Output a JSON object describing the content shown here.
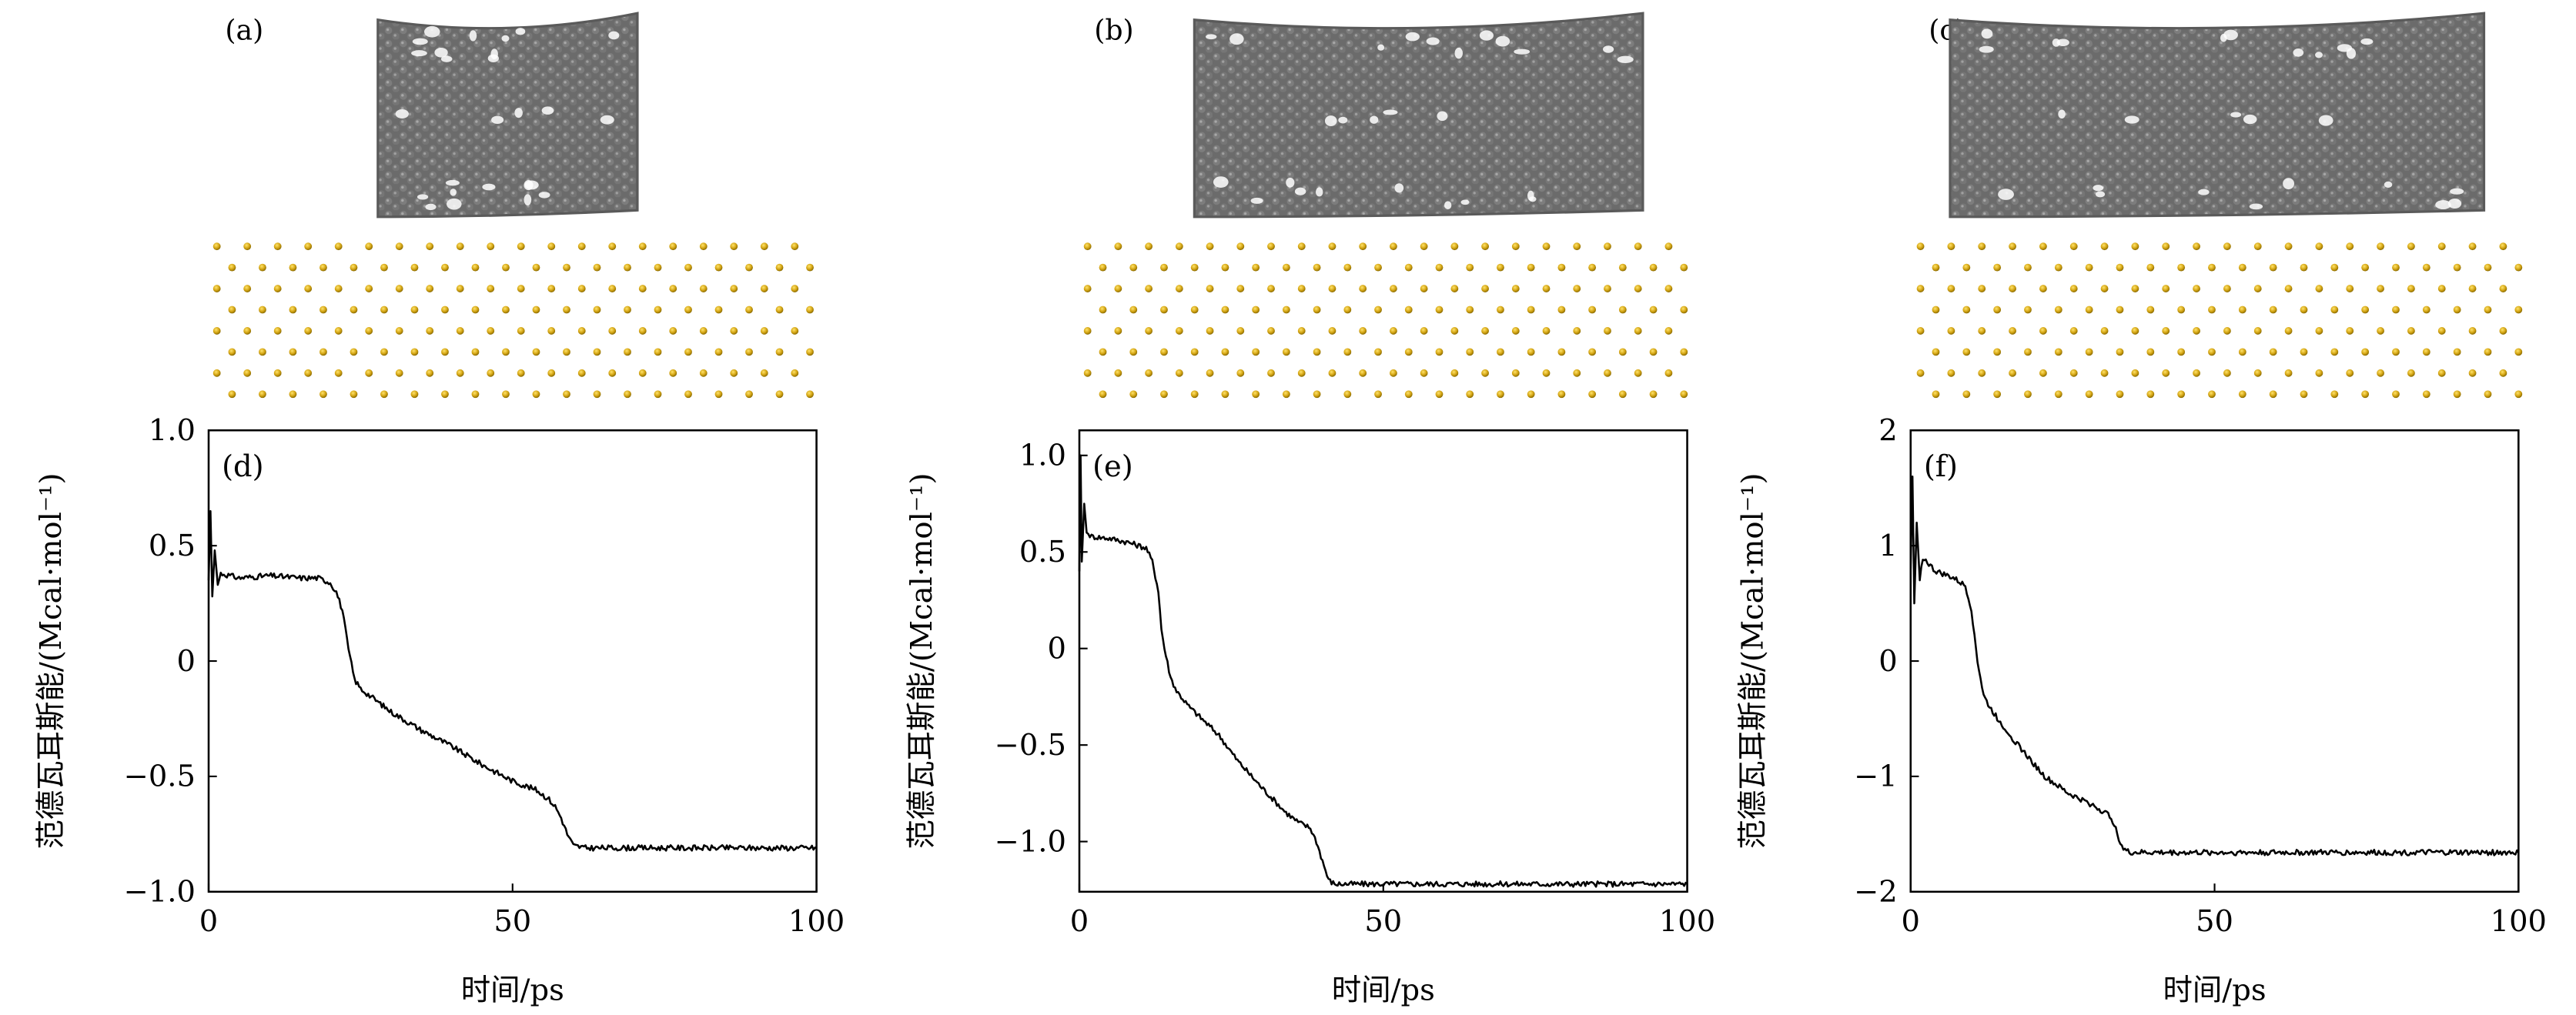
{
  "colors": {
    "line": "#000000",
    "tube": "#6b6b6b",
    "tube_highlight": "#9a9a9a",
    "gold_atom": "#d4a514",
    "gold_atom_edge": "#8a6a00"
  },
  "structure_panels": [
    {
      "label": "(a)"
    },
    {
      "label": "(b)"
    },
    {
      "label": "(c)"
    }
  ],
  "chart_data": [
    {
      "type": "line",
      "panel_label": "(d)",
      "xlabel": "时间/ps",
      "ylabel": "范德瓦耳斯能/(Mcal·mol⁻¹)",
      "xlim": [
        0,
        100
      ],
      "ylim": [
        -1.0,
        1.0
      ],
      "xticks": [
        "0",
        "50",
        "100"
      ],
      "xtick_values": [
        0,
        50,
        100
      ],
      "yticks": [
        "1.0",
        "0.5",
        "0",
        "−0.5",
        "−1.0"
      ],
      "ytick_values": [
        1.0,
        0.5,
        0,
        -0.5,
        -1.0
      ],
      "grid": false,
      "x": [
        0,
        0.3,
        0.6,
        1,
        1.5,
        2,
        5,
        10,
        15,
        18,
        20,
        21,
        22,
        23,
        24,
        25,
        27,
        30,
        35,
        40,
        45,
        50,
        54,
        56,
        57,
        58,
        59,
        60,
        62,
        70,
        80,
        90,
        100
      ],
      "y": [
        0.35,
        0.65,
        0.28,
        0.48,
        0.33,
        0.38,
        0.36,
        0.37,
        0.36,
        0.36,
        0.34,
        0.3,
        0.22,
        0.05,
        -0.08,
        -0.12,
        -0.16,
        -0.22,
        -0.3,
        -0.37,
        -0.45,
        -0.52,
        -0.56,
        -0.6,
        -0.63,
        -0.68,
        -0.75,
        -0.8,
        -0.81,
        -0.81,
        -0.81,
        -0.81,
        -0.81
      ]
    },
    {
      "type": "line",
      "panel_label": "(e)",
      "xlabel": "时间/ps",
      "ylabel": "范德瓦耳斯能/(Mcal·mol⁻¹)",
      "xlim": [
        0,
        100
      ],
      "ylim": [
        -1.26,
        1.13
      ],
      "xticks": [
        "0",
        "50",
        "100"
      ],
      "xtick_values": [
        0,
        50,
        100
      ],
      "yticks": [
        "1.0",
        "0.5",
        "0",
        "−0.5",
        "−1.0"
      ],
      "ytick_values": [
        1.0,
        0.5,
        0,
        -0.5,
        -1.0
      ],
      "grid": false,
      "x": [
        0,
        0.2,
        0.4,
        0.8,
        1.2,
        2,
        5,
        8,
        11,
        12,
        13,
        13.5,
        14,
        15,
        16,
        18,
        20,
        23,
        26,
        30,
        34,
        36,
        38,
        39,
        40,
        41,
        42,
        50,
        60,
        70,
        80,
        90,
        100
      ],
      "y": [
        0.4,
        1.0,
        0.45,
        0.75,
        0.6,
        0.58,
        0.57,
        0.55,
        0.52,
        0.45,
        0.3,
        0.1,
        0.0,
        -0.15,
        -0.22,
        -0.3,
        -0.36,
        -0.45,
        -0.58,
        -0.72,
        -0.85,
        -0.9,
        -0.93,
        -1.0,
        -1.1,
        -1.2,
        -1.22,
        -1.22,
        -1.22,
        -1.22,
        -1.22,
        -1.22,
        -1.22
      ]
    },
    {
      "type": "line",
      "panel_label": "(f)",
      "xlabel": "时间/ps",
      "ylabel": "范德瓦耳斯能/(Mcal·mol⁻¹)",
      "xlim": [
        0,
        100
      ],
      "ylim": [
        -2,
        2
      ],
      "xticks": [
        "0",
        "50",
        "100"
      ],
      "xtick_values": [
        0,
        50,
        100
      ],
      "yticks": [
        "2",
        "1",
        "0",
        "−1",
        "−2"
      ],
      "ytick_values": [
        2,
        1,
        0,
        -1,
        -2
      ],
      "grid": false,
      "x": [
        0,
        0.3,
        0.6,
        1,
        1.5,
        2,
        4,
        7,
        9,
        10,
        11,
        12,
        13,
        15,
        18,
        22,
        26,
        30,
        33,
        34,
        35,
        36,
        40,
        50,
        60,
        70,
        80,
        90,
        100
      ],
      "y": [
        0.8,
        1.6,
        0.5,
        1.2,
        0.7,
        0.9,
        0.78,
        0.72,
        0.65,
        0.45,
        0.0,
        -0.3,
        -0.4,
        -0.55,
        -0.75,
        -1.0,
        -1.15,
        -1.25,
        -1.35,
        -1.5,
        -1.63,
        -1.66,
        -1.66,
        -1.66,
        -1.66,
        -1.66,
        -1.66,
        -1.66,
        -1.66
      ]
    }
  ]
}
